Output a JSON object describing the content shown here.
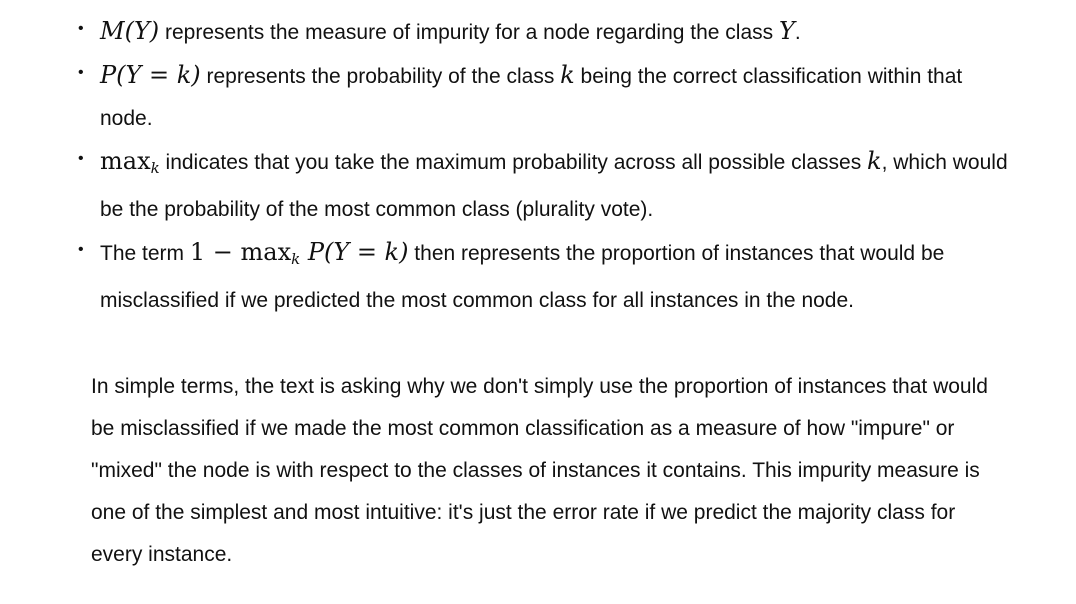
{
  "bullets": [
    {
      "math": "M(Y)",
      "text1": " represents the measure of impurity for a node regarding the class ",
      "math2": "Y",
      "text2": "."
    },
    {
      "math": "P(Y = k)",
      "text1": " represents the probability of the class ",
      "math2": "k",
      "text2": " being the correct classification within that node."
    },
    {
      "math": "max",
      "math_sub": "k",
      "text1": " indicates that you take the maximum probability across all possible classes ",
      "math2": "k",
      "text2": ", which would be the probability of the most common class (plurality vote)."
    },
    {
      "prefix": "The term ",
      "math": "1 − max",
      "math_sub": "k",
      "math_tail": " P(Y = k)",
      "text1": " then represents the proportion of instances that would be misclassified if we predicted the most common class for all instances in the node."
    }
  ],
  "summary": "In simple terms, the text is asking why we don't simply use the proportion of instances that would be misclassified if we made the most common classification as a measure of how \"impure\" or \"mixed\" the node is with respect to the classes of instances it contains. This impurity measure is one of the simplest and most intuitive: it's just the error rate if we predict the majority class for every instance."
}
